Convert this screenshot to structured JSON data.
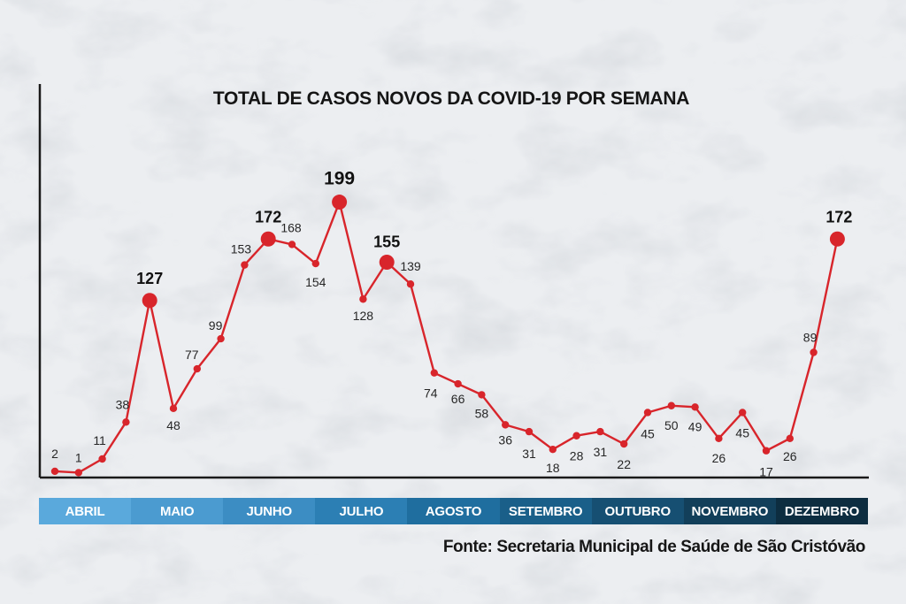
{
  "chart_data": {
    "type": "line",
    "title": "TOTAL DE CASOS NOVOS DA COVID-19 POR SEMANA",
    "source": "Fonte: Secretaria Municipal de Saúde de São Cristóvão",
    "months": [
      "ABRIL",
      "MAIO",
      "JUNHO",
      "JULHO",
      "AGOSTO",
      "SETEMBRO",
      "OUTUBRO",
      "NOVEMBRO",
      "DEZEMBRO"
    ],
    "values": [
      2,
      1,
      11,
      38,
      127,
      48,
      77,
      99,
      153,
      172,
      168,
      154,
      199,
      128,
      155,
      139,
      74,
      66,
      58,
      36,
      31,
      18,
      28,
      31,
      22,
      45,
      50,
      49,
      26,
      45,
      17,
      26,
      89,
      172
    ],
    "highlighted": [
      4,
      9,
      12,
      14,
      33
    ],
    "ylim": [
      0,
      215
    ],
    "colors": {
      "line": "#d8252b",
      "months": [
        "#5aa9dc",
        "#4b9bd0",
        "#3c8dc3",
        "#2c7fb4",
        "#1f6e9f",
        "#1a5f89",
        "#164f72",
        "#123f5a",
        "#0d2d40"
      ]
    }
  }
}
